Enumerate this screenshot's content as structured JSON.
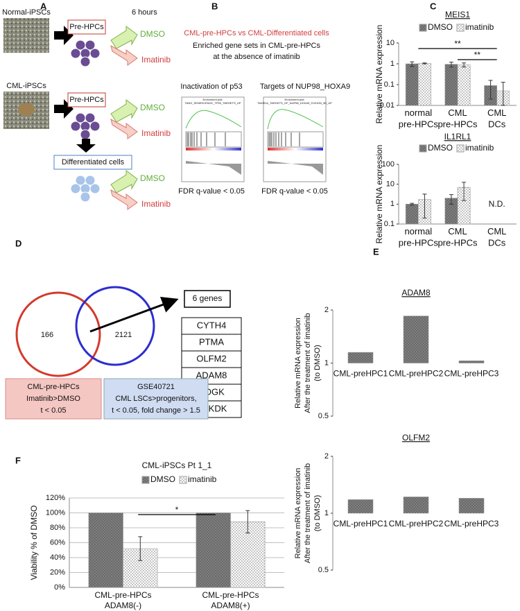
{
  "panel_labels": [
    "A",
    "B",
    "C",
    "D",
    "E",
    "F"
  ],
  "panel_a": {
    "sources": [
      "Normal-iPSCs",
      "CML-iPSCs"
    ],
    "time": "6 hours",
    "pre_hpcs": "Pre-HPCs",
    "differentiated": "Differentiated cells",
    "dmso": "DMSO",
    "imatinib": "Imatinib"
  },
  "panel_b": {
    "title": "CML-pre-HPCs vs CML-Differentiated cells",
    "subtitle": [
      "Enriched gene sets in CML-pre-HPCs",
      "at the absence of imatinib"
    ],
    "plots": [
      {
        "name": "Inactivation of p53",
        "plot_title": "TANG_SENESCENCE_TP53_TARGETS_UP",
        "fdr": "FDR q-value < 0.05"
      },
      {
        "name": "Targets of NUP98_HOXA9",
        "plot_title": "TAKEDA_TARGETS_OF_NUP98_HOXA9_FUSION_3D_UP",
        "fdr": "FDR q-value < 0.05"
      }
    ],
    "enrichment_plot": "Enrichment plot:"
  },
  "panel_d": {
    "left_count": 166,
    "right_count": 2121,
    "genes_label": "6 genes",
    "genes": [
      "CYTH4",
      "PTMA",
      "OLFM2",
      "ADAM8",
      "POGK",
      "PCKDK"
    ],
    "left_box": [
      "CML-pre-HPCs",
      "Imatinib>DMSO",
      "t < 0.05"
    ],
    "right_box": [
      "GSE40721",
      "CML LSCs>progenitors,",
      "t < 0.05, fold change > 1.5"
    ]
  },
  "chart_data": [
    {
      "type": "bar",
      "title": "MEIS1",
      "ylabel": "Relative mRNA expression",
      "categories": [
        "normal\npre-HPCs",
        "CML\npre-HPCs",
        "CML\nDCs"
      ],
      "series": [
        {
          "name": "DMSO",
          "color": "#7f7f7f",
          "values": [
            1,
            0.95,
            0.09
          ],
          "errors": [
            0.25,
            0.25,
            0.07
          ]
        },
        {
          "name": "imatinib",
          "color": "#ffffff",
          "values": [
            1.05,
            0.9,
            0.05
          ],
          "errors": [
            0.05,
            0.2,
            0.08
          ]
        }
      ],
      "log_scale": true,
      "ylim": [
        0.01,
        10
      ],
      "yticks": [
        0.01,
        0.1,
        1,
        10
      ],
      "annotations": [
        "**",
        "**"
      ]
    },
    {
      "type": "bar",
      "title": "IL1RL1",
      "ylabel": "Relative mRNA expression",
      "categories": [
        "normal\npre-HPCs",
        "CML\npre-HPCs",
        "CML\nDCs"
      ],
      "series": [
        {
          "name": "DMSO",
          "color": "#7f7f7f",
          "values": [
            1,
            2,
            null
          ],
          "errors": [
            0.1,
            1,
            null
          ]
        },
        {
          "name": "imatinib",
          "color": "#ffffff",
          "values": [
            1.7,
            7,
            null
          ],
          "errors": [
            1.5,
            5.5,
            null
          ]
        }
      ],
      "log_scale": true,
      "ylim": [
        0.1,
        100
      ],
      "yticks": [
        0.1,
        1,
        10,
        100
      ],
      "annotations": [
        "N.D."
      ]
    },
    {
      "type": "bar",
      "title": "ADAM8",
      "ylabel": [
        "Relative mRNA expression",
        "After the treatment of imatinib",
        "(to DMSO)"
      ],
      "categories": [
        "CML-preHPC1",
        "CML-preHPC2",
        "CML-preHPC3"
      ],
      "series": [
        {
          "color": "#7f7f7f",
          "values": [
            1.15,
            1.85,
            1.03
          ]
        }
      ],
      "log_scale": true,
      "bars_from_one": true,
      "ylim": [
        0.5,
        2
      ],
      "yticks": [
        0.5,
        1,
        2
      ]
    },
    {
      "type": "bar",
      "title": "OLFM2",
      "ylabel": [
        "Relative mRNA expression",
        "After the treatment of imatinib",
        "(to DMSO)"
      ],
      "categories": [
        "CML-preHPC1",
        "CML-preHPC2",
        "CML-preHPC3"
      ],
      "series": [
        {
          "color": "#7f7f7f",
          "values": [
            1.18,
            1.22,
            1.2
          ]
        }
      ],
      "log_scale": true,
      "bars_from_one": true,
      "ylim": [
        0.5,
        2
      ],
      "yticks": [
        0.5,
        1,
        2
      ]
    },
    {
      "type": "bar",
      "title": "CML-iPSCs Pt 1_1",
      "ylabel": "Viability % of DMSO",
      "categories": [
        "CML-pre-HPCs\nADAM8(-)",
        "CML-pre-HPCs\nADAM8(+)"
      ],
      "series": [
        {
          "name": "DMSO",
          "color": "#7f7f7f",
          "values": [
            100,
            100
          ]
        },
        {
          "name": "imatinib",
          "color": "#ffffff",
          "values": [
            52,
            88
          ],
          "errors": [
            16,
            15
          ]
        }
      ],
      "ylim": [
        0,
        120
      ],
      "yticks": [
        {
          "value": 0,
          "label": "0%"
        },
        {
          "value": 20,
          "label": "20%"
        },
        {
          "value": 40,
          "label": "40%"
        },
        {
          "value": 60,
          "label": "60%"
        },
        {
          "value": 80,
          "label": "80%"
        },
        {
          "value": 100,
          "label": "100%"
        },
        {
          "value": 120,
          "label": "120%"
        }
      ],
      "grid": true,
      "annotations": [
        "*"
      ]
    }
  ]
}
